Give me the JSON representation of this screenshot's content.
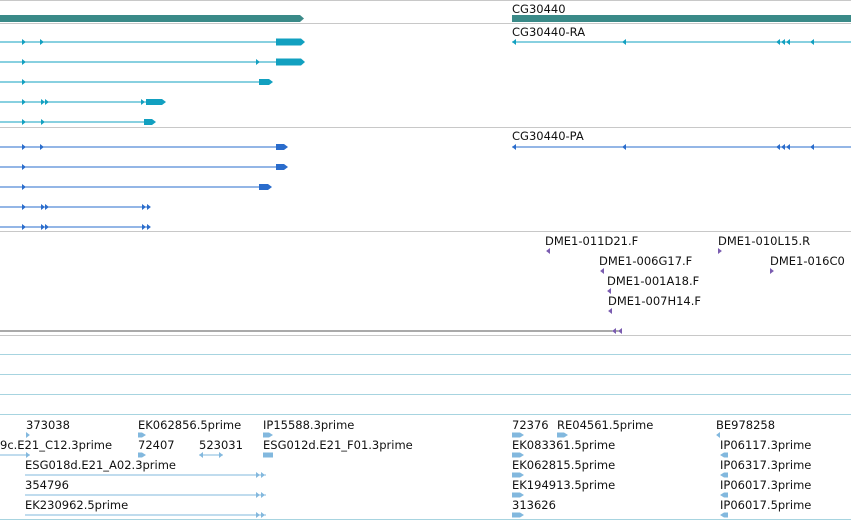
{
  "colors": {
    "gene": "#3a8a88",
    "transcript": "#12a0c0",
    "protein": "#2a6ccc",
    "clone": "#7a5cb0",
    "est": "#82b8de",
    "separator": "#a7d4e0"
  },
  "gene": {
    "label": "CG30440"
  },
  "transcript": {
    "label": "CG30440-RA"
  },
  "protein": {
    "label": "CG30440-PA"
  },
  "clone_ends": [
    "DME1-011D21.F",
    "DME1-010L15.R",
    "DME1-006G17.F",
    "DME1-016C0",
    "DME1-001A18.F",
    "DME1-007H14.F"
  ],
  "ests": [
    "373038",
    "EK062856.5prime",
    "IP15588.3prime",
    "72376",
    "RE04561.5prime",
    "BE978258",
    "9c.E21_C12.3prime",
    "72407",
    "523031",
    "ESG012d.E21_F01.3prime",
    "EK083361.5prime",
    "IP06117.3prime",
    "ESG018d.E21_A02.3prime",
    "EK062815.5prime",
    "IP06317.3prime",
    "354796",
    "EK194913.5prime",
    "IP06017.3prime",
    "EK230962.5prime",
    "313626",
    "IP06017.5prime"
  ]
}
